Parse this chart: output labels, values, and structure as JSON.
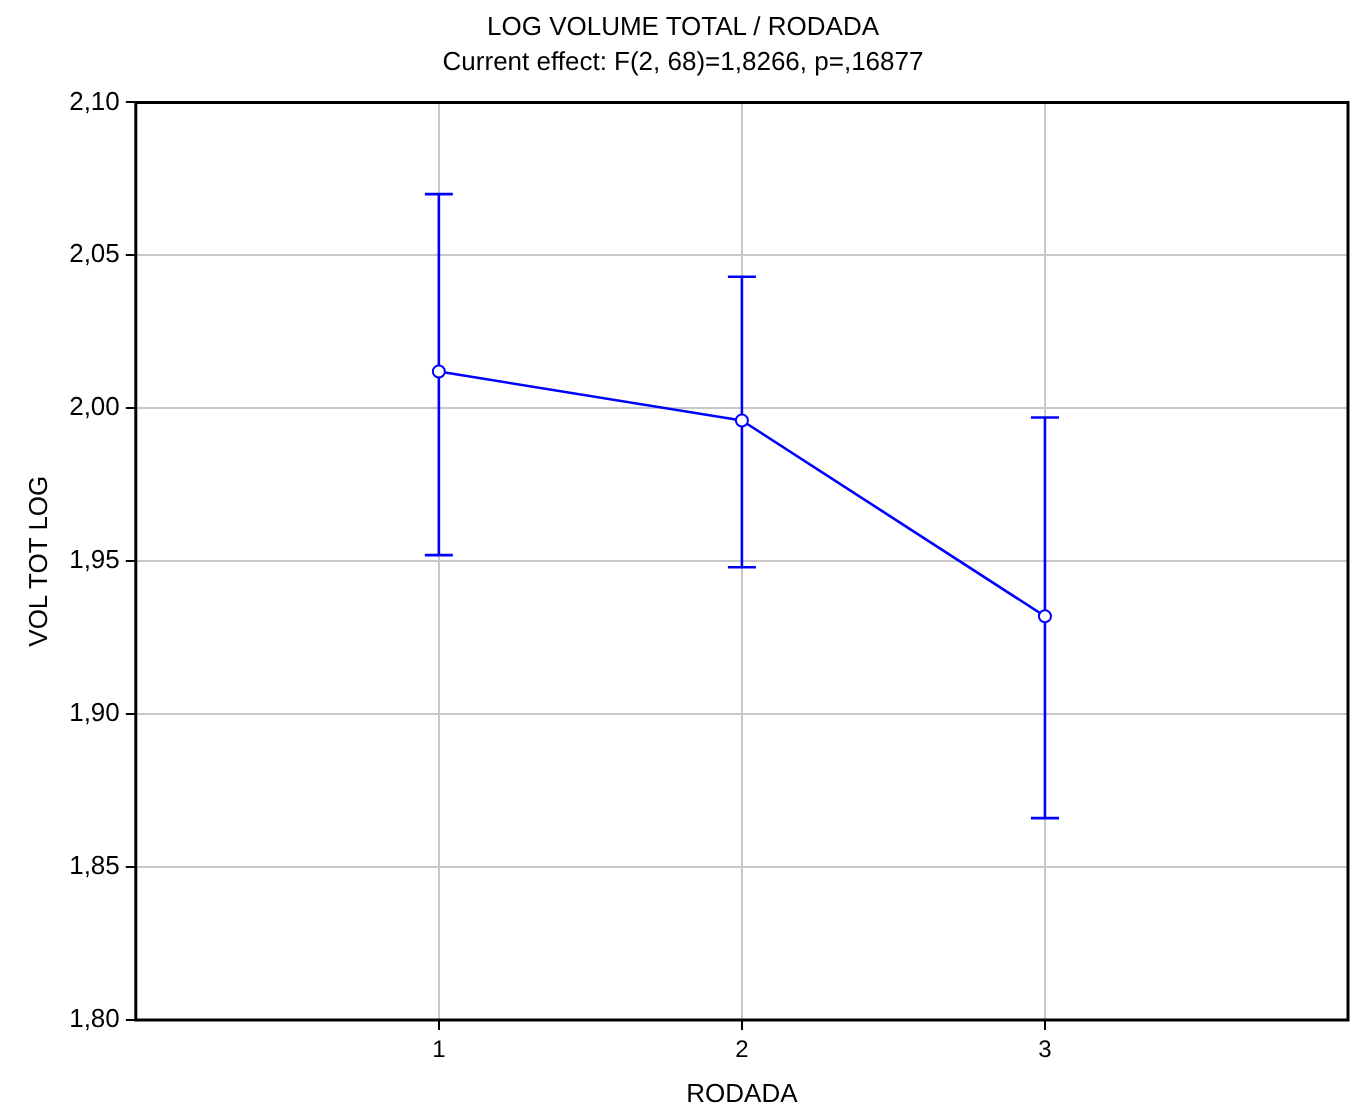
{
  "chart_data": {
    "type": "line",
    "title": "LOG VOLUME TOTAL / RODADA",
    "subtitle": "Current effect: F(2, 68)=1,8266, p=,16877",
    "xlabel": "RODADA",
    "ylabel": "VOL TOT LOG",
    "x": [
      1,
      2,
      3
    ],
    "series": [
      {
        "color": "#0000ff",
        "values": [
          2.012,
          1.996,
          1.932
        ],
        "errors": [
          [
            1.952,
            2.07
          ],
          [
            1.948,
            2.043
          ],
          [
            1.866,
            1.997
          ]
        ]
      }
    ],
    "xlim": [
      0,
      4
    ],
    "xticks": [
      1,
      2,
      3
    ],
    "ylim": [
      1.8,
      2.1
    ],
    "yticks": [
      {
        "value": 1.8,
        "label": "1,80"
      },
      {
        "value": 1.85,
        "label": "1,85"
      },
      {
        "value": 1.9,
        "label": "1,90"
      },
      {
        "value": 1.95,
        "label": "1,95"
      },
      {
        "value": 2.0,
        "label": "2,00"
      },
      {
        "value": 2.05,
        "label": "2,05"
      },
      {
        "value": 2.1,
        "label": "2,10"
      }
    ],
    "grid": true,
    "legend": false,
    "marker": "circle",
    "line_style": "solid"
  }
}
